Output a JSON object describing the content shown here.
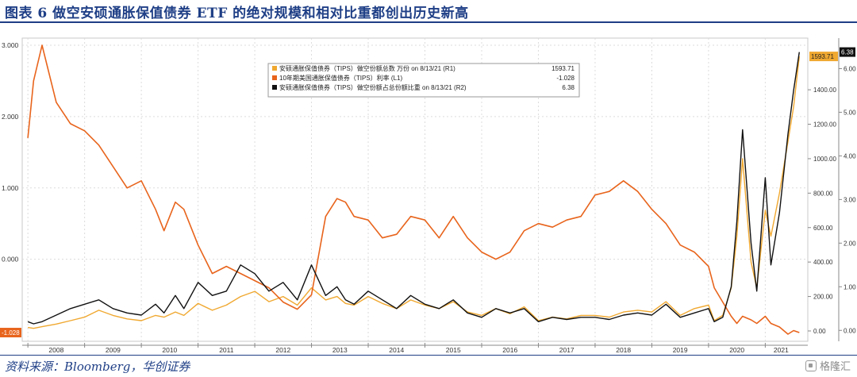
{
  "figure": {
    "title": "图表 6 做空安硕通胀保值债券 ETF 的绝对规模和相对比重都创出历史新高",
    "source": "资料来源：Bloomberg，华创证券",
    "watermark": "格隆汇"
  },
  "colors": {
    "accent": "#1f3f86",
    "short_amount": "#f0a830",
    "tips_yield": "#e8641c",
    "short_ratio": "#111111"
  },
  "chart_data": {
    "type": "line",
    "x": [
      2008.0,
      2008.1,
      2008.25,
      2008.5,
      2008.75,
      2009.0,
      2009.25,
      2009.5,
      2009.75,
      2010.0,
      2010.25,
      2010.4,
      2010.6,
      2010.75,
      2011.0,
      2011.25,
      2011.5,
      2011.75,
      2012.0,
      2012.25,
      2012.5,
      2012.75,
      2013.0,
      2013.25,
      2013.45,
      2013.6,
      2013.75,
      2014.0,
      2014.25,
      2014.5,
      2014.75,
      2015.0,
      2015.25,
      2015.5,
      2015.75,
      2016.0,
      2016.25,
      2016.5,
      2016.75,
      2017.0,
      2017.25,
      2017.5,
      2017.75,
      2018.0,
      2018.25,
      2018.5,
      2018.75,
      2019.0,
      2019.25,
      2019.5,
      2019.75,
      2020.0,
      2020.1,
      2020.25,
      2020.4,
      2020.5,
      2020.6,
      2020.75,
      2020.85,
      2021.0,
      2021.1,
      2021.25,
      2021.4,
      2021.5,
      2021.6
    ],
    "xlim": [
      2007.9,
      2021.75
    ],
    "x_ticks": [
      "2008",
      "2009",
      "2010",
      "2011",
      "2012",
      "2013",
      "2014",
      "2015",
      "2016",
      "2017",
      "2018",
      "2019",
      "2020",
      "2021"
    ],
    "left_axis": {
      "ylim": [
        -1.15,
        3.1
      ],
      "ticks": [
        "3.000",
        "2.000",
        "1.000",
        "0.000"
      ]
    },
    "right_axis_r1": {
      "ylim": [
        -60,
        1700
      ],
      "ticks": [
        "1400.00",
        "1200.00",
        "1000.00",
        "800.00",
        "600.00",
        "400.00",
        "200.00",
        "0.00"
      ]
    },
    "right_axis_r2": {
      "ylim": [
        -0.25,
        6.7
      ],
      "ticks": [
        "6.00",
        "5.00",
        "4.00",
        "3.00",
        "2.00",
        "1.00",
        "0.00"
      ]
    },
    "series": [
      {
        "name": "安硕通胀保值债券（TIPS）做空份额总数 万份 on 8/13/21 (R1)",
        "last_value": "1593.71",
        "axis": "R1",
        "values": [
          20,
          15,
          25,
          40,
          60,
          80,
          120,
          90,
          70,
          60,
          90,
          80,
          110,
          90,
          160,
          120,
          150,
          200,
          230,
          170,
          200,
          150,
          250,
          180,
          200,
          160,
          150,
          200,
          160,
          130,
          180,
          150,
          130,
          170,
          110,
          90,
          130,
          100,
          140,
          60,
          80,
          70,
          90,
          90,
          80,
          110,
          120,
          110,
          170,
          90,
          130,
          150,
          60,
          90,
          250,
          550,
          1000,
          400,
          250,
          700,
          550,
          800,
          1100,
          1300,
          1593.71
        ]
      },
      {
        "name": "10年期美国通胀保值债券（TIPS）利率 (L1)",
        "last_value": "-1.028",
        "axis": "L1",
        "values": [
          1.7,
          2.5,
          3.0,
          2.2,
          1.9,
          1.8,
          1.6,
          1.3,
          1.0,
          1.1,
          0.7,
          0.4,
          0.8,
          0.7,
          0.2,
          -0.2,
          -0.1,
          -0.2,
          -0.3,
          -0.4,
          -0.6,
          -0.7,
          -0.5,
          0.6,
          0.85,
          0.8,
          0.6,
          0.55,
          0.3,
          0.35,
          0.6,
          0.55,
          0.3,
          0.6,
          0.3,
          0.1,
          -0.0,
          0.1,
          0.4,
          0.5,
          0.45,
          0.55,
          0.6,
          0.9,
          0.95,
          1.1,
          0.95,
          0.7,
          0.5,
          0.2,
          0.1,
          -0.1,
          -0.4,
          -0.6,
          -0.8,
          -0.9,
          -0.8,
          -0.85,
          -0.9,
          -0.8,
          -0.9,
          -0.95,
          -1.05,
          -1.0,
          -1.028
        ]
      },
      {
        "name": "安硕通胀保值债券（TIPS）做空份额占总份额比重 on 8/13/21 (R2) 6.38",
        "last_value": "6.38",
        "axis": "R2",
        "values": [
          0.2,
          0.15,
          0.2,
          0.35,
          0.5,
          0.6,
          0.7,
          0.5,
          0.4,
          0.35,
          0.6,
          0.4,
          0.8,
          0.5,
          1.1,
          0.8,
          0.9,
          1.5,
          1.3,
          0.9,
          1.1,
          0.7,
          1.5,
          0.8,
          1.0,
          0.7,
          0.6,
          0.9,
          0.7,
          0.5,
          0.8,
          0.6,
          0.5,
          0.7,
          0.4,
          0.3,
          0.5,
          0.4,
          0.5,
          0.2,
          0.3,
          0.25,
          0.3,
          0.3,
          0.25,
          0.35,
          0.4,
          0.35,
          0.6,
          0.3,
          0.4,
          0.5,
          0.2,
          0.3,
          1.0,
          2.5,
          4.6,
          2.0,
          0.9,
          3.5,
          1.5,
          2.7,
          4.5,
          5.5,
          6.38
        ]
      }
    ],
    "legend": {
      "placement": "top-center",
      "rows": [
        {
          "label": "安硕通胀保值债券（TIPS）做空份额总数 万份 on 8/13/21 (R1)",
          "value": "1593.71"
        },
        {
          "label": "10年期美国通胀保值债券（TIPS）利率 (L1)",
          "value": "-1.028"
        },
        {
          "label": "安硕通胀保值债券（TIPS）做空份额占总份额比重 on 8/13/21 (R2)",
          "value": "6.38"
        }
      ]
    },
    "callouts": {
      "left": "-1.028",
      "right_r1": "1593.71",
      "right_r2": "6.38"
    },
    "grid": true
  }
}
